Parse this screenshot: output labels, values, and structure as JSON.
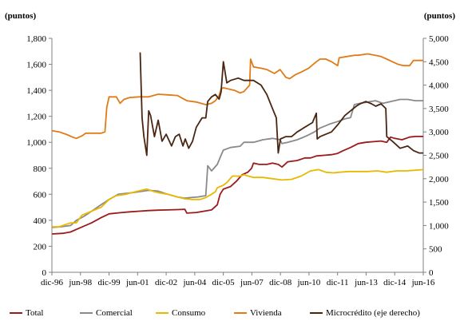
{
  "chart_data": {
    "type": "line",
    "left_unit": "(puntos)",
    "right_unit": "(puntos)",
    "x_tick_labels": [
      "dic-96",
      "jun-98",
      "dic-99",
      "jun-01",
      "dic-02",
      "jun-04",
      "dic-05",
      "jun-07",
      "dic-08",
      "jun-10",
      "dic-11",
      "jun-13",
      "dic-14",
      "jun-16"
    ],
    "x_tick_times": [
      1996.917,
      1998.417,
      1999.917,
      2001.417,
      2002.917,
      2004.417,
      2005.917,
      2007.417,
      2008.917,
      2010.417,
      2011.917,
      2013.417,
      2014.917,
      2016.417
    ],
    "xlim": [
      1996.917,
      2016.417
    ],
    "y_left": {
      "ylim": [
        0,
        1800
      ],
      "ticks": [
        0,
        200,
        400,
        600,
        800,
        1000,
        1200,
        1400,
        1600,
        1800
      ],
      "tick_labels": [
        "0",
        "200",
        "400",
        "600",
        "800",
        "1,000",
        "1,200",
        "1,400",
        "1,600",
        "1,800"
      ]
    },
    "y_right": {
      "ylim": [
        0,
        5000
      ],
      "ticks": [
        0,
        500,
        1000,
        1500,
        2000,
        2500,
        3000,
        3500,
        4000,
        4500,
        5000
      ],
      "tick_labels": [
        "0",
        "500",
        "1,000",
        "1,500",
        "2,000",
        "2,500",
        "3,000",
        "3,500",
        "4,000",
        "4,500",
        "5,000"
      ]
    },
    "series": [
      {
        "name": "Total",
        "color": "#9b1b1b",
        "axis": "left",
        "points": [
          [
            1996.92,
            295
          ],
          [
            1997.5,
            300
          ],
          [
            1997.9,
            310
          ],
          [
            1998.2,
            330
          ],
          [
            1998.6,
            355
          ],
          [
            1999.0,
            380
          ],
          [
            1999.5,
            420
          ],
          [
            1999.92,
            450
          ],
          [
            2000.5,
            458
          ],
          [
            2001.0,
            465
          ],
          [
            2001.5,
            470
          ],
          [
            2002.0,
            475
          ],
          [
            2002.5,
            478
          ],
          [
            2003.0,
            480
          ],
          [
            2003.5,
            482
          ],
          [
            2003.9,
            485
          ],
          [
            2004.0,
            455
          ],
          [
            2004.5,
            460
          ],
          [
            2004.9,
            470
          ],
          [
            2005.3,
            480
          ],
          [
            2005.6,
            520
          ],
          [
            2005.75,
            600
          ],
          [
            2005.92,
            640
          ],
          [
            2006.3,
            660
          ],
          [
            2006.6,
            700
          ],
          [
            2006.9,
            750
          ],
          [
            2007.2,
            770
          ],
          [
            2007.4,
            800
          ],
          [
            2007.5,
            840
          ],
          [
            2007.8,
            830
          ],
          [
            2008.2,
            830
          ],
          [
            2008.5,
            840
          ],
          [
            2008.8,
            830
          ],
          [
            2009.0,
            810
          ],
          [
            2009.3,
            850
          ],
          [
            2009.8,
            860
          ],
          [
            2010.2,
            880
          ],
          [
            2010.5,
            880
          ],
          [
            2010.8,
            895
          ],
          [
            2011.2,
            900
          ],
          [
            2011.6,
            905
          ],
          [
            2011.92,
            915
          ],
          [
            2012.2,
            935
          ],
          [
            2012.6,
            960
          ],
          [
            2013.0,
            990
          ],
          [
            2013.4,
            1000
          ],
          [
            2013.8,
            1005
          ],
          [
            2014.2,
            1010
          ],
          [
            2014.5,
            1000
          ],
          [
            2014.7,
            1040
          ],
          [
            2014.92,
            1030
          ],
          [
            2015.3,
            1020
          ],
          [
            2015.7,
            1040
          ],
          [
            2016.0,
            1045
          ],
          [
            2016.42,
            1045
          ]
        ]
      },
      {
        "name": "Comercial",
        "color": "#8a8a8a",
        "axis": "left",
        "points": [
          [
            1996.92,
            345
          ],
          [
            1997.4,
            350
          ],
          [
            1997.9,
            360
          ],
          [
            1998.2,
            400
          ],
          [
            1998.6,
            430
          ],
          [
            1999.0,
            470
          ],
          [
            1999.5,
            520
          ],
          [
            1999.92,
            560
          ],
          [
            2000.4,
            600
          ],
          [
            2001.0,
            610
          ],
          [
            2001.5,
            620
          ],
          [
            2002.0,
            630
          ],
          [
            2002.5,
            625
          ],
          [
            2003.0,
            600
          ],
          [
            2003.5,
            580
          ],
          [
            2003.9,
            570
          ],
          [
            2004.2,
            575
          ],
          [
            2004.6,
            580
          ],
          [
            2005.0,
            590
          ],
          [
            2005.1,
            820
          ],
          [
            2005.3,
            780
          ],
          [
            2005.6,
            830
          ],
          [
            2005.8,
            900
          ],
          [
            2005.92,
            940
          ],
          [
            2006.3,
            960
          ],
          [
            2006.8,
            970
          ],
          [
            2007.0,
            1000
          ],
          [
            2007.5,
            1000
          ],
          [
            2008.0,
            1020
          ],
          [
            2008.5,
            1030
          ],
          [
            2008.9,
            1020
          ],
          [
            2009.0,
            990
          ],
          [
            2009.3,
            1000
          ],
          [
            2009.8,
            1020
          ],
          [
            2010.3,
            1050
          ],
          [
            2010.7,
            1080
          ],
          [
            2011.0,
            1110
          ],
          [
            2011.5,
            1140
          ],
          [
            2011.92,
            1160
          ],
          [
            2012.3,
            1180
          ],
          [
            2012.6,
            1190
          ],
          [
            2012.8,
            1290
          ],
          [
            2013.1,
            1300
          ],
          [
            2013.5,
            1310
          ],
          [
            2013.9,
            1320
          ],
          [
            2014.3,
            1300
          ],
          [
            2014.6,
            1310
          ],
          [
            2014.9,
            1320
          ],
          [
            2015.2,
            1330
          ],
          [
            2015.6,
            1330
          ],
          [
            2016.0,
            1320
          ],
          [
            2016.42,
            1320
          ]
        ]
      },
      {
        "name": "Consumo",
        "color": "#e8b900",
        "axis": "left",
        "points": [
          [
            1996.92,
            350
          ],
          [
            1997.3,
            350
          ],
          [
            1997.9,
            380
          ],
          [
            1998.2,
            380
          ],
          [
            1998.5,
            440
          ],
          [
            1999.0,
            470
          ],
          [
            1999.5,
            500
          ],
          [
            1999.92,
            560
          ],
          [
            2000.3,
            590
          ],
          [
            2000.8,
            600
          ],
          [
            2001.3,
            620
          ],
          [
            2001.9,
            640
          ],
          [
            2002.3,
            620
          ],
          [
            2002.6,
            610
          ],
          [
            2003.0,
            600
          ],
          [
            2003.5,
            580
          ],
          [
            2003.9,
            565
          ],
          [
            2004.3,
            560
          ],
          [
            2004.7,
            560
          ],
          [
            2005.0,
            575
          ],
          [
            2005.3,
            600
          ],
          [
            2005.5,
            620
          ],
          [
            2005.6,
            650
          ],
          [
            2005.92,
            670
          ],
          [
            2006.1,
            690
          ],
          [
            2006.4,
            740
          ],
          [
            2006.8,
            740
          ],
          [
            2007.0,
            750
          ],
          [
            2007.5,
            730
          ],
          [
            2008.0,
            730
          ],
          [
            2008.5,
            720
          ],
          [
            2009.0,
            710
          ],
          [
            2009.5,
            715
          ],
          [
            2010.0,
            740
          ],
          [
            2010.5,
            780
          ],
          [
            2010.92,
            790
          ],
          [
            2011.3,
            770
          ],
          [
            2011.7,
            765
          ],
          [
            2012.0,
            770
          ],
          [
            2012.5,
            775
          ],
          [
            2013.0,
            775
          ],
          [
            2013.5,
            775
          ],
          [
            2014.0,
            780
          ],
          [
            2014.5,
            770
          ],
          [
            2015.0,
            780
          ],
          [
            2015.5,
            780
          ],
          [
            2016.0,
            785
          ],
          [
            2016.42,
            790
          ]
        ]
      },
      {
        "name": "Vivienda",
        "color": "#e07b18",
        "axis": "left",
        "points": [
          [
            1996.92,
            1090
          ],
          [
            1997.3,
            1080
          ],
          [
            1997.7,
            1060
          ],
          [
            1998.0,
            1040
          ],
          [
            1998.2,
            1030
          ],
          [
            1998.5,
            1050
          ],
          [
            1998.7,
            1070
          ],
          [
            1999.0,
            1070
          ],
          [
            1999.5,
            1070
          ],
          [
            1999.7,
            1080
          ],
          [
            1999.8,
            1270
          ],
          [
            1999.92,
            1350
          ],
          [
            2000.3,
            1350
          ],
          [
            2000.5,
            1300
          ],
          [
            2000.7,
            1330
          ],
          [
            2001.0,
            1345
          ],
          [
            2001.5,
            1350
          ],
          [
            2002.0,
            1350
          ],
          [
            2002.5,
            1370
          ],
          [
            2003.0,
            1365
          ],
          [
            2003.5,
            1360
          ],
          [
            2004.0,
            1320
          ],
          [
            2004.5,
            1310
          ],
          [
            2005.0,
            1290
          ],
          [
            2005.3,
            1300
          ],
          [
            2005.5,
            1320
          ],
          [
            2005.7,
            1360
          ],
          [
            2005.8,
            1410
          ],
          [
            2005.92,
            1420
          ],
          [
            2006.2,
            1410
          ],
          [
            2006.5,
            1400
          ],
          [
            2006.8,
            1380
          ],
          [
            2007.0,
            1390
          ],
          [
            2007.3,
            1440
          ],
          [
            2007.35,
            1640
          ],
          [
            2007.5,
            1580
          ],
          [
            2007.9,
            1570
          ],
          [
            2008.2,
            1560
          ],
          [
            2008.6,
            1530
          ],
          [
            2008.9,
            1560
          ],
          [
            2009.2,
            1500
          ],
          [
            2009.4,
            1490
          ],
          [
            2009.7,
            1520
          ],
          [
            2010.0,
            1540
          ],
          [
            2010.4,
            1570
          ],
          [
            2010.8,
            1620
          ],
          [
            2011.0,
            1640
          ],
          [
            2011.3,
            1640
          ],
          [
            2011.6,
            1620
          ],
          [
            2011.92,
            1590
          ],
          [
            2012.0,
            1650
          ],
          [
            2012.4,
            1660
          ],
          [
            2012.8,
            1670
          ],
          [
            2013.0,
            1670
          ],
          [
            2013.5,
            1680
          ],
          [
            2013.9,
            1670
          ],
          [
            2014.2,
            1660
          ],
          [
            2014.5,
            1640
          ],
          [
            2014.8,
            1620
          ],
          [
            2015.1,
            1600
          ],
          [
            2015.4,
            1590
          ],
          [
            2015.7,
            1590
          ],
          [
            2015.9,
            1630
          ],
          [
            2016.42,
            1630
          ]
        ]
      },
      {
        "name": "Microcrédito (eje derecho)",
        "color": "#4a2612",
        "axis": "right",
        "points": [
          [
            2001.55,
            4700
          ],
          [
            2001.65,
            3300
          ],
          [
            2001.75,
            2900
          ],
          [
            2001.9,
            2500
          ],
          [
            2002.0,
            3450
          ],
          [
            2002.1,
            3350
          ],
          [
            2002.3,
            2900
          ],
          [
            2002.5,
            3250
          ],
          [
            2002.7,
            2800
          ],
          [
            2002.92,
            2950
          ],
          [
            2003.2,
            2700
          ],
          [
            2003.4,
            2900
          ],
          [
            2003.6,
            2950
          ],
          [
            2003.8,
            2700
          ],
          [
            2003.92,
            2850
          ],
          [
            2004.1,
            2650
          ],
          [
            2004.3,
            2800
          ],
          [
            2004.5,
            3100
          ],
          [
            2004.8,
            3300
          ],
          [
            2005.0,
            3300
          ],
          [
            2005.1,
            3650
          ],
          [
            2005.3,
            3750
          ],
          [
            2005.5,
            3800
          ],
          [
            2005.7,
            3700
          ],
          [
            2005.8,
            3850
          ],
          [
            2005.92,
            4500
          ],
          [
            2006.1,
            4050
          ],
          [
            2006.3,
            4100
          ],
          [
            2006.7,
            4150
          ],
          [
            2007.0,
            4100
          ],
          [
            2007.5,
            4100
          ],
          [
            2007.9,
            4000
          ],
          [
            2008.2,
            3800
          ],
          [
            2008.5,
            3500
          ],
          [
            2008.7,
            3300
          ],
          [
            2008.8,
            2550
          ],
          [
            2008.92,
            2850
          ],
          [
            2009.2,
            2900
          ],
          [
            2009.5,
            2900
          ],
          [
            2009.8,
            3000
          ],
          [
            2010.0,
            3050
          ],
          [
            2010.2,
            3100
          ],
          [
            2010.4,
            3150
          ],
          [
            2010.6,
            3200
          ],
          [
            2010.8,
            3400
          ],
          [
            2010.85,
            2850
          ],
          [
            2011.0,
            2900
          ],
          [
            2011.3,
            2950
          ],
          [
            2011.6,
            3000
          ],
          [
            2011.92,
            3150
          ],
          [
            2012.3,
            3350
          ],
          [
            2012.6,
            3450
          ],
          [
            2012.9,
            3550
          ],
          [
            2013.1,
            3600
          ],
          [
            2013.4,
            3650
          ],
          [
            2013.7,
            3600
          ],
          [
            2013.92,
            3550
          ],
          [
            2014.2,
            3600
          ],
          [
            2014.45,
            3500
          ],
          [
            2014.5,
            2900
          ],
          [
            2014.8,
            2800
          ],
          [
            2015.2,
            2650
          ],
          [
            2015.6,
            2700
          ],
          [
            2015.9,
            2600
          ],
          [
            2016.2,
            2550
          ],
          [
            2016.42,
            2550
          ]
        ]
      }
    ]
  }
}
